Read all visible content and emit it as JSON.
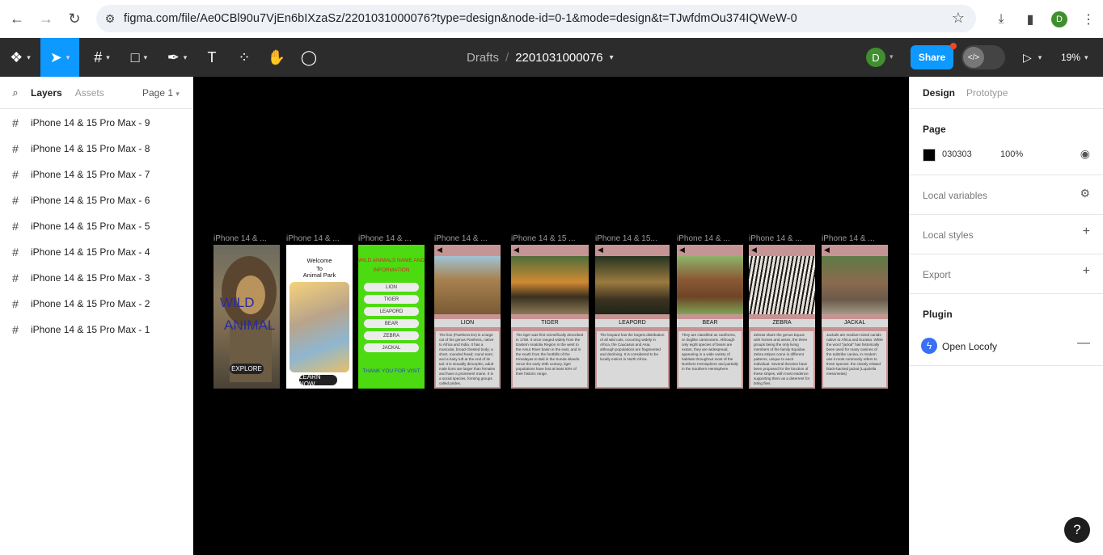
{
  "browser": {
    "url": "figma.com/file/Ae0CBl90u7VjEn6bIXzaSz/2201031000076?type=design&node-id=0-1&mode=design&t=TJwfdmOu374IQWeW-0",
    "profile_initial": "D"
  },
  "toolbar": {
    "breadcrumb_root": "Drafts",
    "file_name": "2201031000076",
    "user_initial": "D",
    "share_label": "Share",
    "zoom": "19%",
    "accent": "#0d99ff"
  },
  "left_panel": {
    "tab_layers": "Layers",
    "tab_assets": "Assets",
    "page_selector": "Page 1",
    "layers": [
      "iPhone 14 & 15 Pro Max - 9",
      "iPhone 14 & 15 Pro Max - 8",
      "iPhone 14 & 15 Pro Max - 7",
      "iPhone 14 & 15 Pro Max - 6",
      "iPhone 14 & 15 Pro Max - 5",
      "iPhone 14 & 15 Pro Max - 4",
      "iPhone 14 & 15 Pro Max - 3",
      "iPhone 14 & 15 Pro Max - 2",
      "iPhone 14 & 15 Pro Max - 1"
    ]
  },
  "canvas": {
    "background": "#000000",
    "frame_labels": [
      "iPhone 14 & ...",
      "iPhone 14 & ...",
      "iPhone 14 & ...",
      "iPhone 14 & ...",
      "iPhone 14 & 15 ...",
      "iPhone 14 & 15...",
      "iPhone 14 & ...",
      "iPhone 14 & ...",
      "iPhone 14 & ..."
    ],
    "frame1": {
      "word1": "WILD",
      "word2": "ANIMAL",
      "button": "EXPLORE"
    },
    "frame2": {
      "line1": "Welcome",
      "line2": "To",
      "line3": "Animal Park",
      "button": "LEARN NOW"
    },
    "frame3": {
      "heading1": "WILD ANIMALS NAME AND",
      "heading2": "INFORMATION",
      "buttons": [
        "LION",
        "TIGER",
        "LEAPORD",
        "BEAR",
        "ZEBRA",
        "JACKAL"
      ],
      "footer": "THANK YOU FOR VISIT"
    },
    "cards": [
      {
        "label": "LION",
        "desc": "The lion (Panthera leo) is a large cat of the genus Panthera, native to Africa and India. It has a muscular, broad-chested body; a short, rounded head; round ears; and a hairy tuft at the end of its tail. It is sexually dimorphic; adult male lions are larger than females and have a prominent mane. It is a social species, forming groups called prides."
      },
      {
        "label": "TIGER",
        "desc": "The tiger was first scientifically described in 1758. It once ranged widely from the Eastern Anatolia Region in the west to the Amur River basin in the east, and in the south from the foothills of the Himalayas to Bali in the Sunda islands. Since the early 20th century, tiger populations have lost at least 93% of their historic range."
      },
      {
        "label": "LEAPORD",
        "desc": "The leopard has the largest distribution of all wild cats, occurring widely in Africa, the Caucasus and Asia, although populations are fragmented and declining. It is considered to be locally extinct in North Africa."
      },
      {
        "label": "BEAR",
        "desc": "They are classified as caniforms, or doglike carnivorans. Although only eight species of bears are extant, they are widespread, appearing in a wide variety of habitats throughout most of the Northern Hemisphere and partially in the Southern Hemisphere."
      },
      {
        "label": "ZEBRA",
        "desc": "Zebras share the genus Equus with horses and asses, the three groups being the only living members of the family Equidae. Zebra stripes come in different patterns, unique to each individual. Several theories have been proposed for the function of these stripes, with most evidence supporting them as a deterrent for biting flies."
      },
      {
        "label": "JACKAL",
        "desc": "Jackals are medium-sized canids native to Africa and Eurasia. While the word \"jackal\" has historically been used for many canines of the subtribe canina, in modern use it most commonly refers to three species: the closely related black-backed jackal (Lupulella mesomelas)"
      }
    ]
  },
  "right_panel": {
    "tab_design": "Design",
    "tab_prototype": "Prototype",
    "page_section": "Page",
    "page_color": "030303",
    "page_opacity": "100%",
    "local_variables": "Local variables",
    "local_styles": "Local styles",
    "export": "Export",
    "plugin_section": "Plugin",
    "plugin_name": "Open Locofy"
  },
  "help": "?"
}
